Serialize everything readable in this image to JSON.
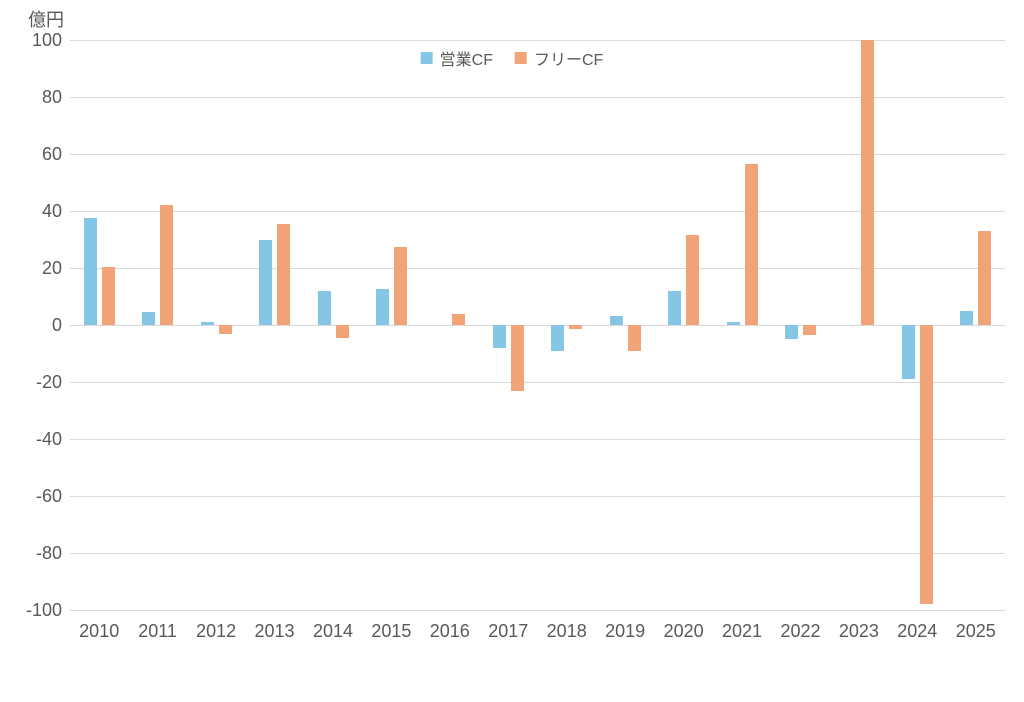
{
  "chart_data": {
    "type": "bar",
    "title": "",
    "unit_label": "億円",
    "xlabel": "",
    "ylabel": "億円",
    "categories": [
      "2010",
      "2011",
      "2012",
      "2013",
      "2014",
      "2015",
      "2016",
      "2017",
      "2018",
      "2019",
      "2020",
      "2021",
      "2022",
      "2023",
      "2024",
      "2025"
    ],
    "series": [
      {
        "name": "営業CF",
        "key": "operating-cf",
        "color": "#85c6e4",
        "values": [
          37.5,
          4.5,
          1,
          30,
          12,
          12.5,
          0,
          -8,
          -9,
          3,
          12,
          1,
          -5,
          0,
          -19,
          5
        ]
      },
      {
        "name": "フリーCF",
        "key": "free-cf",
        "color": "#f0a478",
        "values": [
          20.5,
          42,
          -3,
          35.5,
          -4.5,
          27.5,
          4,
          -23,
          -1.5,
          -9,
          31.5,
          56.5,
          -3.5,
          100,
          -98,
          33
        ]
      }
    ],
    "ylim": [
      -100,
      100
    ],
    "ytick_step": 20,
    "yticks": [
      100,
      80,
      60,
      40,
      20,
      0,
      -20,
      -40,
      -60,
      -80,
      -100
    ],
    "grid": true,
    "legend_position": "top-center",
    "gridline_color": "#d9d9d9",
    "text_color": "#595959",
    "background_color": "#ffffff"
  }
}
